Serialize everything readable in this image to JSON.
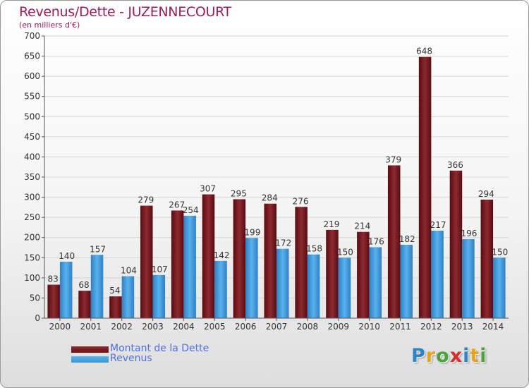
{
  "header": {
    "title": "Revenus/Dette - JUZENNECOURT",
    "subtitle": "(en milliers d'€)"
  },
  "logo": {
    "text": "Proxiti",
    "letters": [
      {
        "ch": "P",
        "color": "#2e84c6"
      },
      {
        "ch": "r",
        "color": "#e8a21c"
      },
      {
        "ch": "o",
        "color": "#4aa43a"
      },
      {
        "ch": "x",
        "color": "#d92b28"
      },
      {
        "ch": "i",
        "color": "#2e84c6"
      },
      {
        "ch": "t",
        "color": "#e8a21c"
      },
      {
        "ch": "i",
        "color": "#4aa43a"
      }
    ]
  },
  "legend": {
    "placement": "bottom-left",
    "items": [
      {
        "label": "Montant de la Dette",
        "color": "#6e1017"
      },
      {
        "label": "Revenus",
        "color": "#3c95d6"
      }
    ]
  },
  "chart_data": {
    "type": "bar",
    "title": "Revenus/Dette - JUZENNECOURT",
    "subtitle": "(en milliers d'€)",
    "xlabel": "",
    "ylabel": "",
    "ylim": [
      0,
      700
    ],
    "ytick_step": 50,
    "grid": true,
    "categories": [
      "2000",
      "2001",
      "2002",
      "2003",
      "2004",
      "2005",
      "2006",
      "2007",
      "2008",
      "2009",
      "2010",
      "2011",
      "2012",
      "2013",
      "2014"
    ],
    "series": [
      {
        "name": "Montant de la Dette",
        "color": "#6e1017",
        "values": [
          83,
          68,
          54,
          279,
          267,
          307,
          295,
          284,
          276,
          219,
          214,
          379,
          648,
          366,
          294
        ]
      },
      {
        "name": "Revenus",
        "color": "#3c95d6",
        "values": [
          140,
          157,
          104,
          107,
          254,
          142,
          199,
          172,
          158,
          150,
          176,
          182,
          217,
          196,
          150
        ]
      }
    ]
  }
}
